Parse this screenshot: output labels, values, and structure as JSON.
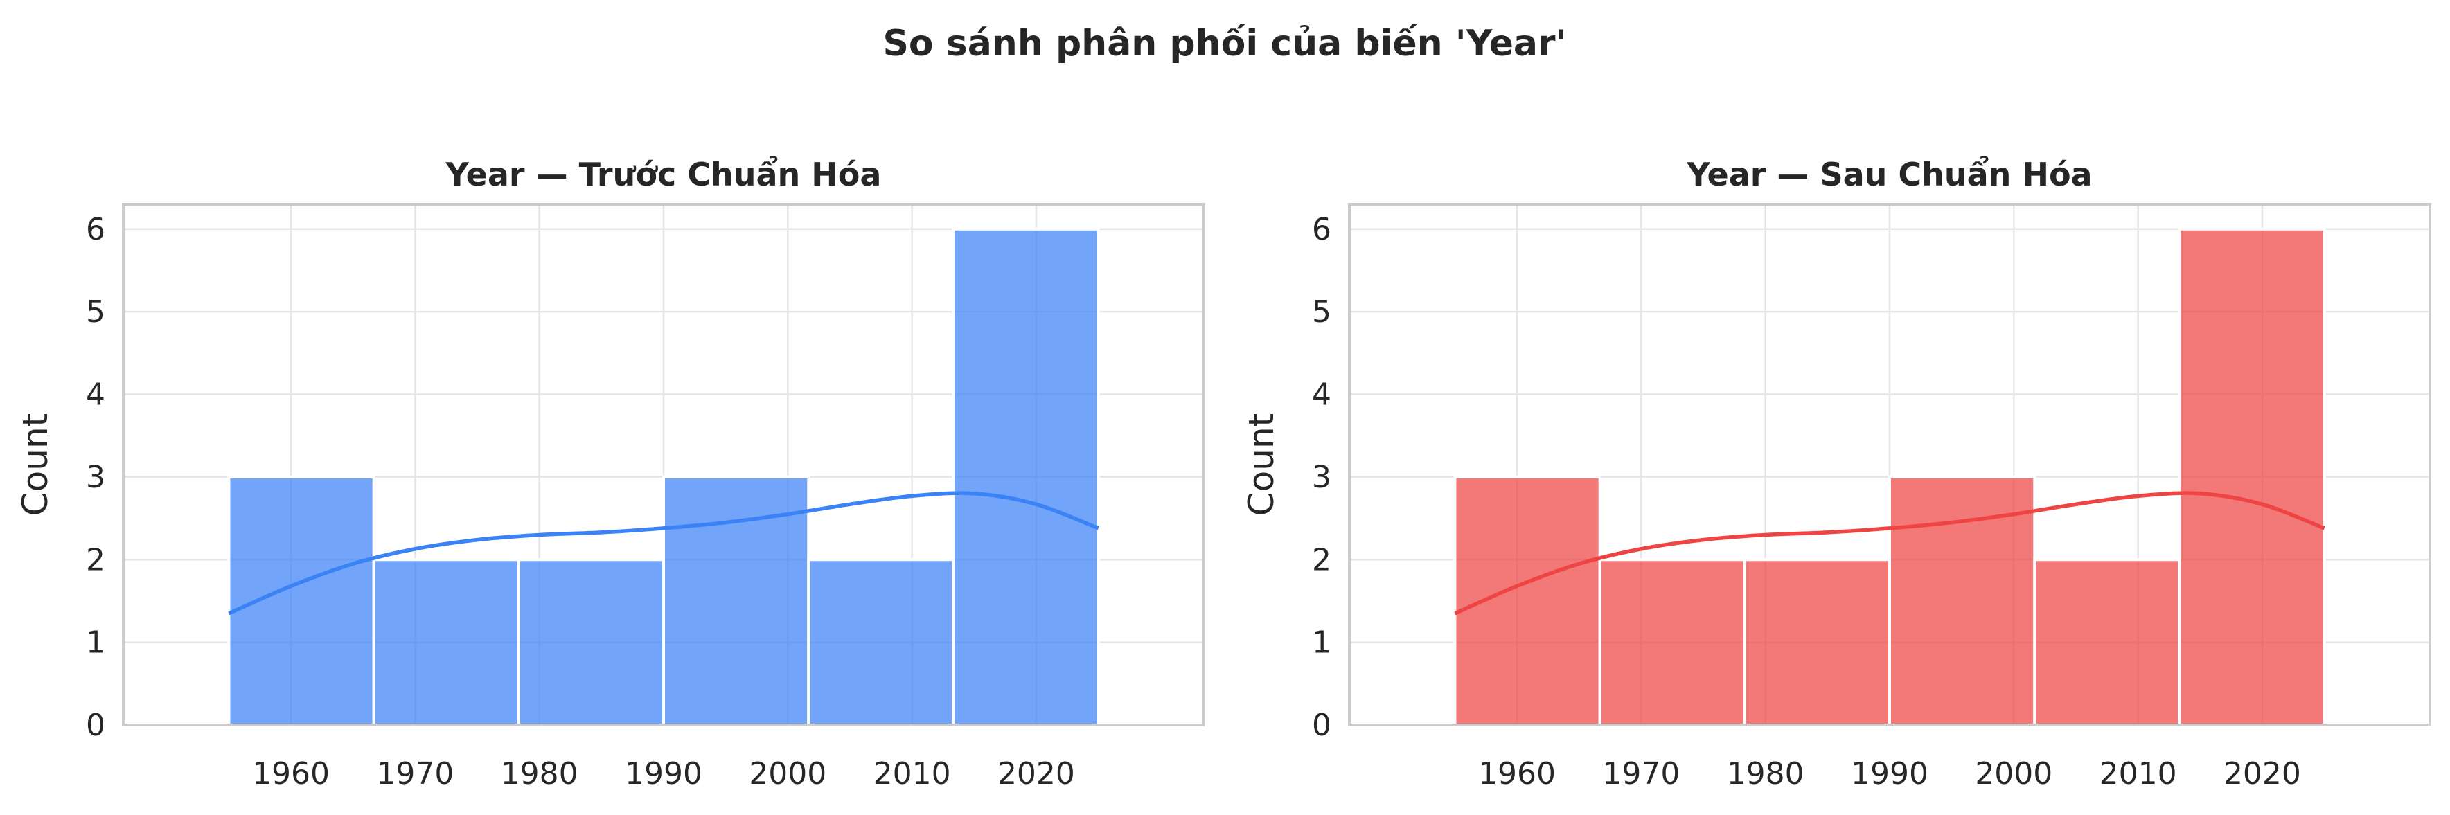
{
  "figure": {
    "suptitle": "So sánh phân phối của biến 'Year'"
  },
  "chart_data": [
    {
      "type": "bar",
      "title": "Year — Trước Chuẩn Hóa",
      "xlabel": "",
      "ylabel": "Count",
      "color": "#3b82f6",
      "bins": [
        {
          "start": 1955.0,
          "end": 1966.67,
          "count": 3
        },
        {
          "start": 1966.67,
          "end": 1978.33,
          "count": 2
        },
        {
          "start": 1978.33,
          "end": 1990.0,
          "count": 2
        },
        {
          "start": 1990.0,
          "end": 2001.67,
          "count": 3
        },
        {
          "start": 2001.67,
          "end": 2013.33,
          "count": 2
        },
        {
          "start": 2013.33,
          "end": 2025.0,
          "count": 6
        }
      ],
      "kde": {
        "x": [
          1955,
          1960,
          1965,
          1970,
          1975,
          1980,
          1985,
          1990,
          1995,
          2000,
          2005,
          2010,
          2015,
          2020,
          2025
        ],
        "y": [
          1.35,
          1.68,
          1.95,
          2.13,
          2.24,
          2.3,
          2.33,
          2.38,
          2.45,
          2.55,
          2.67,
          2.77,
          2.8,
          2.67,
          2.38
        ]
      },
      "xticks": [
        1960,
        1970,
        1980,
        1990,
        2000,
        2010,
        2020
      ],
      "yticks": [
        0,
        1,
        2,
        3,
        4,
        5,
        6
      ],
      "xlim": [
        1946.5,
        2033.5
      ],
      "ylim": [
        0,
        6.3
      ],
      "grid": true
    },
    {
      "type": "bar",
      "title": "Year — Sau Chuẩn Hóa",
      "xlabel": "",
      "ylabel": "Count",
      "color": "#ef4444",
      "bins": [
        {
          "start": 1955.0,
          "end": 1966.67,
          "count": 3
        },
        {
          "start": 1966.67,
          "end": 1978.33,
          "count": 2
        },
        {
          "start": 1978.33,
          "end": 1990.0,
          "count": 2
        },
        {
          "start": 1990.0,
          "end": 2001.67,
          "count": 3
        },
        {
          "start": 2001.67,
          "end": 2013.33,
          "count": 2
        },
        {
          "start": 2013.33,
          "end": 2025.0,
          "count": 6
        }
      ],
      "kde": {
        "x": [
          1955,
          1960,
          1965,
          1970,
          1975,
          1980,
          1985,
          1990,
          1995,
          2000,
          2005,
          2010,
          2015,
          2020,
          2025
        ],
        "y": [
          1.35,
          1.68,
          1.95,
          2.13,
          2.24,
          2.3,
          2.33,
          2.38,
          2.45,
          2.55,
          2.67,
          2.77,
          2.8,
          2.67,
          2.38
        ]
      },
      "xticks": [
        1960,
        1970,
        1980,
        1990,
        2000,
        2010,
        2020
      ],
      "yticks": [
        0,
        1,
        2,
        3,
        4,
        5,
        6
      ],
      "xlim": [
        1946.5,
        2033.5
      ],
      "ylim": [
        0,
        6.3
      ],
      "grid": true
    }
  ]
}
